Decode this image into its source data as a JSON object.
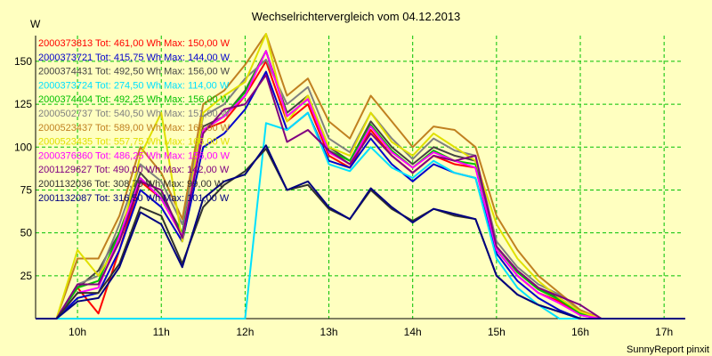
{
  "chart_data": {
    "type": "line",
    "title": "Wechselrichtervergleich vom 04.12.2013",
    "ylabel": "W",
    "xlabel": "",
    "footer": "SunnyReport pinxit",
    "ylim": [
      0,
      165
    ],
    "xlim": [
      9.5,
      17.2
    ],
    "yticks": [
      25,
      50,
      75,
      100,
      125,
      150
    ],
    "xticks": [
      10,
      11,
      12,
      13,
      14,
      15,
      16,
      17
    ],
    "xtick_labels": [
      "10h",
      "11h",
      "12h",
      "13h",
      "14h",
      "15h",
      "16h",
      "17h"
    ],
    "grid": true,
    "legend_position": "top-left inside plot",
    "x": [
      9.5,
      9.75,
      10.0,
      10.25,
      10.5,
      10.75,
      11.0,
      11.25,
      11.5,
      11.75,
      12.0,
      12.25,
      12.5,
      12.75,
      13.0,
      13.25,
      13.5,
      13.75,
      14.0,
      14.25,
      14.5,
      14.75,
      15.0,
      15.25,
      15.5,
      15.75,
      16.0,
      16.25,
      16.5,
      16.75,
      17.0,
      17.25
    ],
    "series": [
      {
        "name": "2000373813",
        "legend": "2000373813 Tot: 461,00 Wh Max: 150,00 W",
        "color": "#ff0000",
        "values": [
          0,
          0,
          18,
          3,
          40,
          80,
          70,
          48,
          110,
          115,
          130,
          150,
          115,
          125,
          95,
          88,
          110,
          95,
          85,
          95,
          90,
          88,
          40,
          25,
          15,
          10,
          2,
          0,
          0,
          0,
          0,
          0
        ]
      },
      {
        "name": "2000373721",
        "legend": "2000373721 Tot: 415,75 Wh Max: 144,00 W",
        "color": "#0000cc",
        "values": [
          0,
          0,
          12,
          15,
          40,
          75,
          65,
          45,
          100,
          108,
          122,
          144,
          110,
          120,
          92,
          88,
          105,
          90,
          80,
          90,
          85,
          82,
          38,
          22,
          12,
          5,
          0,
          0,
          0,
          0,
          0,
          0
        ]
      },
      {
        "name": "2000374431",
        "legend": "2000374431 Tot: 492,50 Wh Max: 156,00 W",
        "color": "#444444",
        "values": [
          0,
          0,
          18,
          28,
          50,
          85,
          72,
          50,
          112,
          118,
          133,
          156,
          120,
          130,
          100,
          92,
          115,
          100,
          90,
          100,
          95,
          92,
          42,
          28,
          18,
          12,
          4,
          0,
          0,
          0,
          0,
          0
        ]
      },
      {
        "name": "2000373724",
        "legend": "2000373724 Tot: 274,50 Wh Max: 114,00 W",
        "color": "#00e0ff",
        "values": [
          0,
          0,
          0,
          0,
          0,
          0,
          0,
          0,
          0,
          0,
          0,
          114,
          110,
          120,
          90,
          86,
          100,
          88,
          82,
          92,
          85,
          82,
          35,
          18,
          8,
          0,
          0,
          0,
          0,
          0,
          0,
          0
        ]
      },
      {
        "name": "2000374404",
        "legend": "2000374404 Tot: 492,25 Wh Max: 156,00 W",
        "color": "#00c000",
        "values": [
          0,
          0,
          18,
          22,
          50,
          82,
          70,
          50,
          110,
          118,
          132,
          156,
          118,
          128,
          98,
          92,
          113,
          98,
          88,
          98,
          92,
          90,
          42,
          27,
          17,
          11,
          3,
          0,
          0,
          0,
          0,
          0
        ]
      },
      {
        "name": "2000502737",
        "legend": "2000502737 Tot: 540,50 Wh Max: 151,00 W",
        "color": "#808080",
        "values": [
          0,
          0,
          20,
          25,
          55,
          90,
          80,
          55,
          118,
          125,
          140,
          151,
          125,
          135,
          105,
          97,
          120,
          105,
          93,
          105,
          98,
          95,
          45,
          30,
          20,
          14,
          5,
          0,
          0,
          0,
          0,
          0
        ]
      },
      {
        "name": "2000523437",
        "legend": "2000523437 Tot: 589,00 Wh Max: 166,00 W",
        "color": "#c08020",
        "values": [
          0,
          0,
          35,
          35,
          60,
          100,
          85,
          58,
          125,
          133,
          148,
          166,
          130,
          140,
          115,
          105,
          130,
          115,
          100,
          112,
          110,
          100,
          60,
          40,
          25,
          15,
          5,
          0,
          0,
          0,
          0,
          0
        ]
      },
      {
        "name": "2000523435",
        "legend": "2000523435 Tot: 557,75 Wh Max: 166,00 W",
        "color": "#e0e000",
        "values": [
          0,
          0,
          40,
          25,
          45,
          95,
          120,
          45,
          120,
          130,
          138,
          166,
          115,
          130,
          100,
          95,
          120,
          103,
          95,
          108,
          100,
          92,
          55,
          35,
          22,
          12,
          4,
          0,
          0,
          0,
          0,
          0
        ]
      },
      {
        "name": "2000376360",
        "legend": "2000376360 Tot: 486,25 Wh Max: 156,00 W",
        "color": "#ff00ff",
        "values": [
          0,
          0,
          15,
          18,
          48,
          82,
          70,
          48,
          110,
          118,
          130,
          156,
          118,
          128,
          97,
          90,
          112,
          97,
          88,
          97,
          92,
          88,
          40,
          25,
          15,
          9,
          2,
          0,
          0,
          0,
          0,
          0
        ]
      },
      {
        "name": "2001129627",
        "legend": "2001129627 Tot: 490,00 Wh Max: 142,00 W",
        "color": "#800080",
        "values": [
          0,
          0,
          20,
          20,
          45,
          80,
          75,
          47,
          108,
          122,
          125,
          142,
          103,
          110,
          98,
          90,
          108,
          95,
          85,
          95,
          92,
          95,
          42,
          28,
          18,
          13,
          8,
          0,
          0,
          0,
          0,
          0
        ]
      },
      {
        "name": "2001132036",
        "legend": "2001132036 Tot: 308,75 Wh Max: 99,00 W",
        "color": "#303030",
        "values": [
          0,
          0,
          15,
          15,
          32,
          65,
          60,
          32,
          65,
          78,
          86,
          99,
          75,
          78,
          64,
          58,
          75,
          64,
          57,
          64,
          60,
          58,
          25,
          14,
          8,
          4,
          0,
          0,
          0,
          0,
          0,
          0
        ]
      },
      {
        "name": "2001132087",
        "legend": "2001132087 Tot: 316,50 Wh Max: 101,00 W",
        "color": "#000080",
        "values": [
          0,
          0,
          10,
          12,
          30,
          62,
          55,
          30,
          70,
          80,
          84,
          101,
          75,
          80,
          65,
          58,
          76,
          65,
          56,
          64,
          61,
          58,
          25,
          14,
          8,
          4,
          0,
          0,
          0,
          0,
          0,
          0
        ]
      }
    ]
  }
}
